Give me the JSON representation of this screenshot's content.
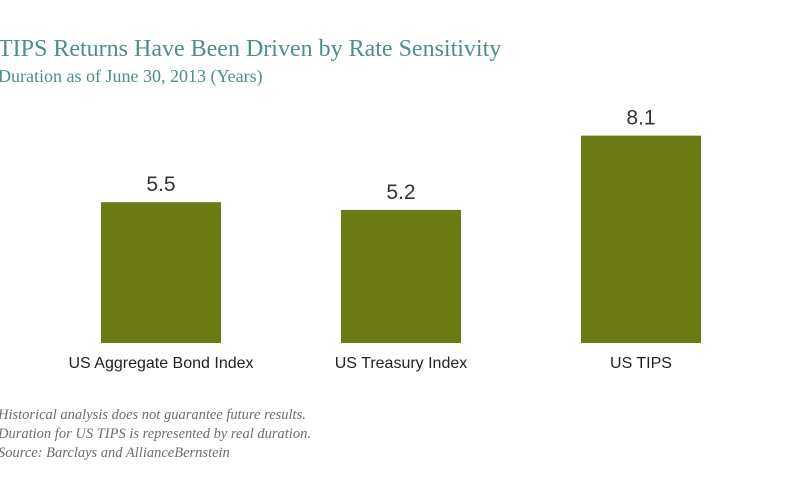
{
  "chart_data": {
    "type": "bar",
    "title": "TIPS Returns Have Been Driven by Rate Sensitivity",
    "subtitle": "Duration as of June 30, 2013 (Years)",
    "categories": [
      "US Aggregate Bond Index",
      "US Treasury Index",
      "US TIPS"
    ],
    "values": [
      5.5,
      5.2,
      8.1
    ],
    "data_labels": [
      "5.5",
      "5.2",
      "8.1"
    ],
    "xlabel": "",
    "ylabel": "",
    "ylim": [
      0,
      10
    ],
    "grid": false,
    "bar_color": "#6b7a14"
  },
  "notes": {
    "line1": "Historical analysis does not guarantee future results.",
    "line2": "Duration for US TIPS is represented by real duration.",
    "line3": "Source: Barclays and AllianceBernstein"
  }
}
